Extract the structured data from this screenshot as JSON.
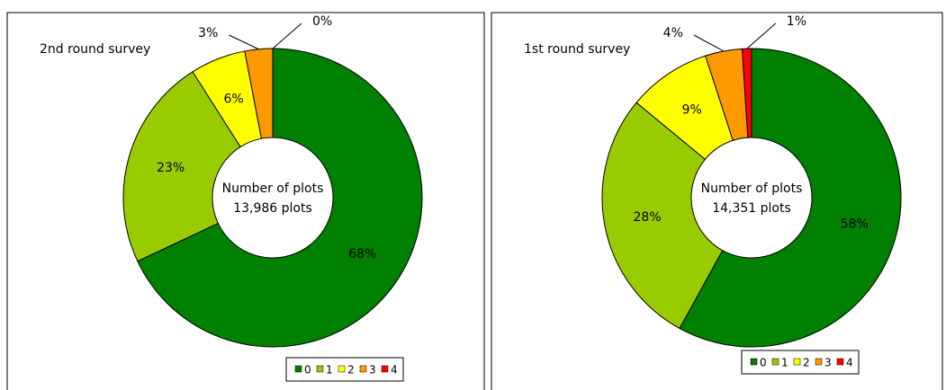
{
  "chart_data": [
    {
      "type": "donut",
      "title": "2nd round survey",
      "center_label": [
        "Number of plots",
        "13,986 plots"
      ],
      "categories": [
        "0",
        "1",
        "2",
        "3",
        "4"
      ],
      "values": [
        68,
        23,
        6,
        3,
        0
      ],
      "value_labels": [
        "68%",
        "23%",
        "6%",
        "3%",
        "0%"
      ],
      "colors": [
        "#008000",
        "#99cc00",
        "#ffff00",
        "#ff9900",
        "#ff0000"
      ],
      "legend": "bottom-right"
    },
    {
      "type": "donut",
      "title": "1st round survey",
      "center_label": [
        "Number of plots",
        "14,351 plots"
      ],
      "categories": [
        "0",
        "1",
        "2",
        "3",
        "4"
      ],
      "values": [
        58,
        28,
        9,
        4,
        1
      ],
      "value_labels": [
        "58%",
        "28%",
        "9%",
        "4%",
        "1%"
      ],
      "colors": [
        "#008000",
        "#99cc00",
        "#ffff00",
        "#ff9900",
        "#ff0000"
      ],
      "legend": "bottom-right"
    }
  ]
}
